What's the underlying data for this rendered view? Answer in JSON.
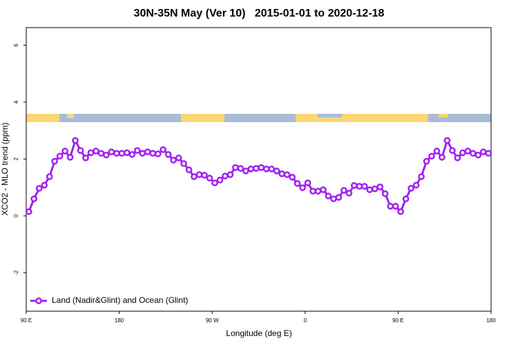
{
  "chart_data": {
    "type": "line",
    "title": "30N-35N May (Ver 10)   2015-01-01 to 2020-12-18",
    "x_label": "Longitude (deg E)",
    "y_label": "XCO2 - MLO trend (ppm)",
    "xlim": [
      90,
      540
    ],
    "xticks": [
      {
        "value": 90,
        "label": "90 E"
      },
      {
        "value": 180,
        "label": "180"
      },
      {
        "value": 270,
        "label": "90 W"
      },
      {
        "value": 360,
        "label": "0"
      },
      {
        "value": 450,
        "label": "90 E"
      },
      {
        "value": 540,
        "label": "180"
      }
    ],
    "ylim": [
      -3.35,
      6.62
    ],
    "yticks": [
      -2,
      0,
      2,
      4,
      6
    ],
    "legend": "bottom-left",
    "x": [
      92.5,
      97.5,
      102.5,
      107.5,
      112.5,
      117.5,
      122.5,
      127.5,
      132.5,
      137.5,
      142.5,
      147.5,
      152.5,
      157.5,
      162.5,
      167.5,
      172.5,
      177.5,
      182.5,
      187.5,
      192.5,
      197.5,
      202.5,
      207.5,
      212.5,
      217.5,
      222.5,
      227.5,
      232.5,
      237.5,
      242.5,
      247.5,
      252.5,
      257.5,
      262.5,
      267.5,
      272.5,
      277.5,
      282.5,
      287.5,
      292.5,
      297.5,
      302.5,
      307.5,
      312.5,
      317.5,
      322.5,
      327.5,
      332.5,
      337.5,
      342.5,
      347.5,
      352.5,
      357.5,
      362.5,
      367.5,
      372.5,
      377.5,
      382.5,
      387.5,
      392.5,
      397.5,
      402.5,
      407.5,
      412.5,
      417.5,
      422.5,
      427.5,
      432.5,
      437.5,
      442.5,
      447.5,
      452.5,
      457.5,
      462.5,
      467.5,
      472.5,
      477.5,
      482.5,
      487.5,
      492.5,
      497.5,
      502.5,
      507.5,
      512.5,
      517.5,
      522.5,
      527.5,
      532.5,
      537.5
    ],
    "series": [
      {
        "name": "Land (Nadir&Glint) and Ocean (Glint)",
        "color": "#a020f0",
        "values": [
          0.15,
          0.6,
          0.97,
          1.08,
          1.38,
          1.92,
          2.1,
          2.28,
          2.06,
          2.65,
          2.3,
          2.04,
          2.22,
          2.28,
          2.2,
          2.14,
          2.25,
          2.2,
          2.2,
          2.22,
          2.16,
          2.3,
          2.2,
          2.25,
          2.2,
          2.18,
          2.33,
          2.16,
          1.96,
          2.04,
          1.84,
          1.62,
          1.38,
          1.45,
          1.43,
          1.33,
          1.16,
          1.26,
          1.4,
          1.45,
          1.7,
          1.67,
          1.58,
          1.65,
          1.67,
          1.7,
          1.65,
          1.65,
          1.58,
          1.48,
          1.45,
          1.36,
          1.14,
          0.99,
          1.16,
          0.87,
          0.87,
          0.92,
          0.7,
          0.6,
          0.65,
          0.9,
          0.8,
          1.07,
          1.04,
          1.04,
          0.92,
          0.95,
          1.02,
          0.78,
          0.34,
          0.34,
          0.15,
          0.6,
          0.97,
          1.08,
          1.38,
          1.92,
          2.1,
          2.28,
          2.06,
          2.65,
          2.3,
          2.04,
          2.22,
          2.28,
          2.2,
          2.14,
          2.25,
          2.2
        ]
      }
    ]
  }
}
